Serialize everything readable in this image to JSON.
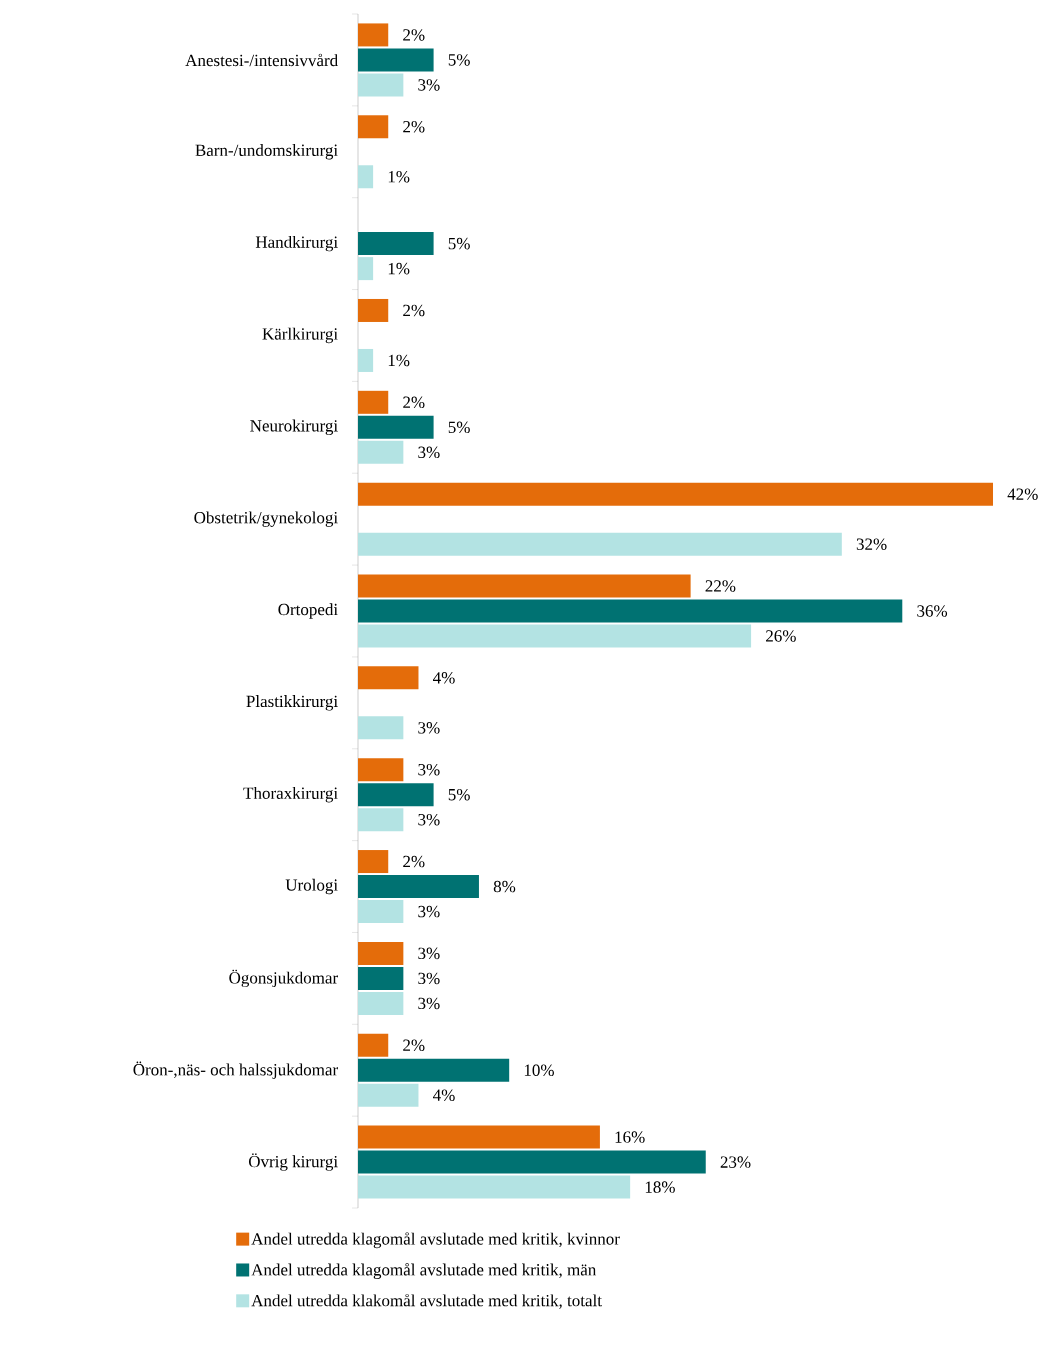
{
  "chart_data": {
    "type": "bar",
    "orientation": "horizontal",
    "categories": [
      "Anestesi-/intensivvård",
      "Barn-/undomskirurgi",
      "Handkirurgi",
      "Kärlkirurgi",
      "Neurokirurgi",
      "Obstetrik/gynekologi",
      "Ortopedi",
      "Plastikkirurgi",
      "Thoraxkirurgi",
      "Urologi",
      "Ögonsjukdomar",
      "Öron-,näs- och halssjukdomar",
      "Övrig kirurgi"
    ],
    "series": [
      {
        "name": "Andel utredda klagomål avslutade med kritik, kvinnor",
        "color": "#e46c0a",
        "values": [
          2,
          2,
          null,
          2,
          2,
          42,
          22,
          4,
          3,
          2,
          3,
          2,
          16
        ],
        "value_labels": [
          "2%",
          "2%",
          null,
          "2%",
          "2%",
          "42%",
          "22%",
          "4%",
          "3%",
          "2%",
          "3%",
          "2%",
          "16%"
        ]
      },
      {
        "name": "Andel utredda klagomål avslutade med kritik, män",
        "color": "#007272",
        "values": [
          5,
          null,
          5,
          null,
          5,
          null,
          36,
          null,
          5,
          8,
          3,
          10,
          23
        ],
        "value_labels": [
          "5%",
          null,
          "5%",
          null,
          "5%",
          null,
          "36%",
          null,
          "5%",
          "8%",
          "3%",
          "10%",
          "23%"
        ]
      },
      {
        "name": "Andel utredda klakomål avslutade med kritik, totalt",
        "color": "#b3e3e3",
        "values": [
          3,
          1,
          1,
          1,
          3,
          32,
          26,
          3,
          3,
          3,
          3,
          4,
          18
        ],
        "value_labels": [
          "3%",
          "1%",
          "1%",
          "1%",
          "3%",
          "32%",
          "26%",
          "3%",
          "3%",
          "3%",
          "3%",
          "4%",
          "18%"
        ]
      }
    ],
    "legend": "bottom"
  }
}
